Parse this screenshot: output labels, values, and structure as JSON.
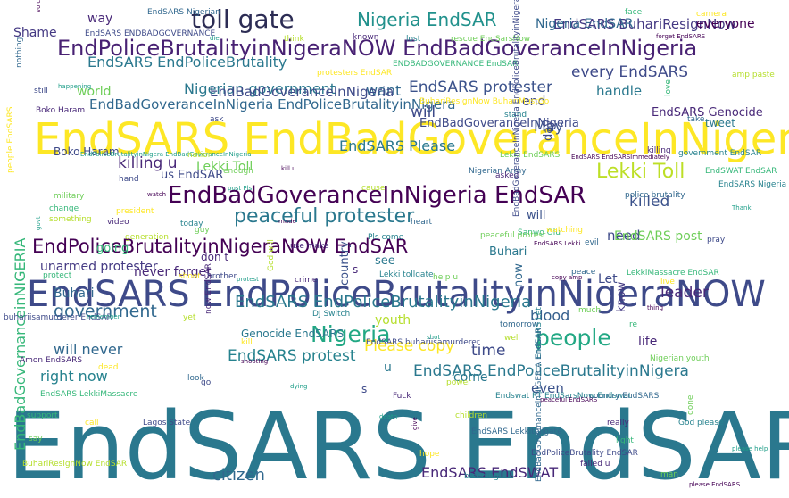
{
  "words": {
    "w0": "EndSARS EndSAR",
    "w1": "EndSARS EndBadGoveranceInNigeria",
    "w2": "EndSARS EndPoliceBrutalityinNigeraNOW",
    "w3": "EndPoliceBrutalityinNigeraNOW EndBadGoveranceInNigeria",
    "w4": "EndBadGoveranceInNigeria EndSAR",
    "w5": "EndPoliceBrutalityinNigeraNOW EndSAR",
    "w6": "toll gate",
    "w7": "peaceful protester",
    "w8": "Lekki Toll",
    "w9": "Nigeria EndSAR",
    "w10": "people",
    "w11": "Nigeria",
    "w12": "EndSARS EndPoliceBrutality",
    "w13": "EndSARS protester",
    "w14": "Nigerian government",
    "w15": "EndBadGoveranceInNigeria EndPoliceBrutalityinNigera",
    "w16": "EndSARS BuhariResignNow",
    "w17": "every EndSARS",
    "w18": "EndSARS EndPoliceBrutalityinNigera",
    "w19": "unarmed protester",
    "w20": "EndSARS protest",
    "w21": "EndSARS EndSWAT",
    "w22": "EndSARS EndSWAT",
    "w23": "government",
    "w24": "will never",
    "w25": "right now",
    "w26": "citizen",
    "w27": "EndSARS EndPoliceBrutalityinNigeria",
    "w28": "Shame",
    "w29": "world",
    "w30": "killing u",
    "w31": "want",
    "w32": "killed",
    "w33": "will",
    "w34": "handle",
    "w35": "leader",
    "w36": "blood",
    "w37": "even",
    "w38": "time",
    "w39": "Buhari",
    "w40": "way",
    "w41": "Please copy",
    "w42": "EndSARS Please",
    "w43": "EndBadGoveranceInNigeria",
    "w44": "everyone",
    "w45": "Nigeria EndSAR",
    "w46": "EndBadGovernanceinNIGERIA",
    "w47": "youth",
    "w48": "come",
    "w49": "u",
    "w50": "don t",
    "w51": "going",
    "w52": "never forget",
    "w53": "us EndSAR",
    "w54": "Let",
    "w55": "need",
    "w56": "see",
    "w57": "EndSARS post",
    "w58": "May",
    "w59": "end",
    "w60": "now",
    "w61": "know",
    "w62": "life",
    "w63": "day",
    "w64": "country",
    "w65": "s",
    "w66": "Buhari",
    "w67": "s",
    "w68": "Lekki Toll",
    "w69": "EndBadGoveranceInNigeria",
    "w70": "Genocide EndSARS",
    "w71": "EndSARS Genocide",
    "w72": "tweet",
    "w73": "Boko Haram",
    "w74": "will"
  },
  "small": [
    "voice",
    "EndSARS Nigerian",
    "face",
    "camera",
    "EndSARS ENDBADGOVERNANCE",
    "die",
    "think",
    "known",
    "lost",
    "rescue EndSarsNow",
    "forget EndSARS",
    "nothing",
    "ENDBADGOVERNANCE EndSAR",
    "protesters EndSAR",
    "still",
    "happening",
    "amp paste",
    "Boko Haram",
    "stand",
    "Lekki EndSARS",
    "EndSARS EndSARSImmediately",
    "take",
    "love",
    "BuhariResignNow BuhariMustGo",
    "ask",
    "EndPoliceBrutalityinNigera EndBadGoveranceInNigeria",
    "nation",
    "killing",
    "government EndSAR",
    "enough",
    "kill u",
    "Nigerian Army",
    "EndSWAT EndSAR",
    "people EndSARS",
    "hand",
    "post Pls",
    "cause",
    "asked",
    "EndSARS Nigeria",
    "military",
    "watch",
    "police brutality",
    "change",
    "president",
    "EndBadGoveranceInNigeria EndPoliceBrutalityinNigeraNOW",
    "Thank",
    "something",
    "video",
    "today",
    "guy",
    "made",
    "heart",
    "Sanwo Olu",
    "watching",
    "pray",
    "govt",
    "generation",
    "use make",
    "Pls come",
    "peaceful protest",
    "EndSARS Lekki",
    "evil",
    "protect",
    "shoot",
    "brother",
    "protest",
    "God will",
    "crime",
    "Lekki tollgate",
    "help u",
    "copy amp",
    "peace",
    "LekkiMassacre EndSAR",
    "live",
    "buhariisamurderer EndSAR",
    "remember",
    "yet",
    "now EndSAR",
    "DJ Switch",
    "much",
    "thing",
    "tomorrow",
    "re",
    "kill",
    "EndSARS buhariisamurderer",
    "shot",
    "well",
    "Amon EndSARS",
    "EndSARS Let",
    "Nigerian youth",
    "shooting",
    "look",
    "EndSARS LekkiMassacre",
    "dead",
    "go",
    "dying",
    "power",
    "Fuck",
    "Endswat RT EndSarsNow Endswat",
    "done",
    "peaceful EndSARS",
    "country EndSARS",
    "support",
    "call",
    "Lagos State",
    "death",
    "children",
    "really",
    "God please",
    "say",
    "give",
    "EndSARS Lekkitollgate",
    "light",
    "hope",
    "EndPoliceBrutality EndSAR",
    "please help",
    "BuhariResignNow EndSAR",
    "failed u",
    "bleeding",
    "man",
    "please EndSARS",
    "EndBadGovernanceinNIGERIA EndSAR"
  ]
}
